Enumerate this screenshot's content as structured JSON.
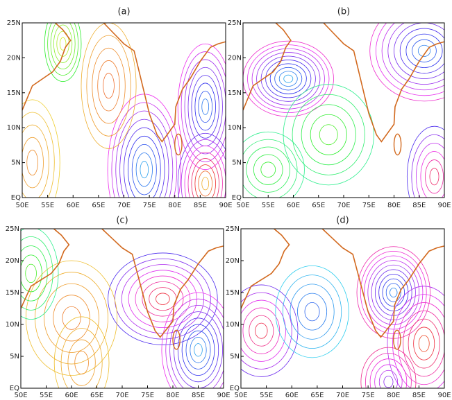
{
  "panels": [
    {
      "label": "(a)"
    },
    {
      "label": "(b)"
    },
    {
      "label": "(c)"
    },
    {
      "label": "(d)"
    }
  ],
  "xticks": [
    "50E",
    "55E",
    "60E",
    "65E",
    "70E",
    "75E",
    "80E",
    "85E",
    "90E"
  ],
  "yticks": [
    "25N",
    "20N",
    "15N",
    "10N",
    "5N",
    "EQ"
  ]
}
